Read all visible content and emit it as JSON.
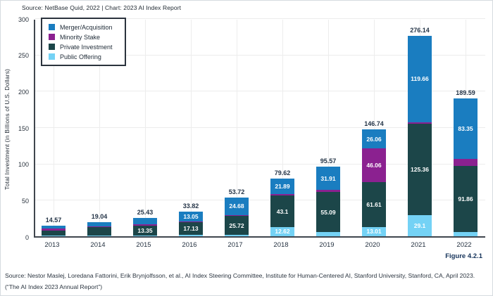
{
  "header": {
    "source_line": "Source: NetBase Quid, 2022 | Chart: 2023 AI Index Report"
  },
  "figure_label": "Figure 4.2.1",
  "footer": {
    "line1": "Source: Nestor Maslej, Loredana Fattorini, Erik Brynjolfsson, et al., AI Index Steering Committee, Institute for Human-Centered AI, Stanford University, Stanford, CA, April 2023.",
    "line2": "(“The AI Index 2023 Annual Report”)"
  },
  "chart_data": {
    "type": "bar",
    "stacked": true,
    "title": "",
    "xlabel": "",
    "ylabel": "Total Investment (in Billions of U.S. Dollars)",
    "ylim": [
      0,
      300
    ],
    "yticks": [
      0,
      50,
      100,
      150,
      200,
      250,
      300
    ],
    "grid": true,
    "legend_position": "top-left",
    "categories": [
      "2013",
      "2014",
      "2015",
      "2016",
      "2017",
      "2018",
      "2019",
      "2020",
      "2021",
      "2022"
    ],
    "stack_order_bottom_to_top": [
      "public_offering",
      "private_investment",
      "minority_stake",
      "merger_acquisition"
    ],
    "series": [
      {
        "key": "merger_acquisition",
        "name": "Merger/Acquisition",
        "color": "#1A7DC0",
        "values": [
          4.3,
          5.0,
          9.3,
          13.05,
          24.68,
          21.89,
          31.91,
          26.06,
          119.66,
          83.35
        ],
        "labels": [
          "",
          "",
          "",
          "13.05",
          "24.68",
          "21.89",
          "31.91",
          "26.06",
          "119.66",
          "83.35"
        ]
      },
      {
        "key": "minority_stake",
        "name": "Minority Stake",
        "color": "#8B2190",
        "values": [
          2.4,
          1.2,
          1.5,
          1.5,
          1.32,
          2.01,
          3.0,
          46.06,
          2.02,
          9.0
        ],
        "labels": [
          "",
          "",
          "",
          "",
          "",
          "",
          "",
          "46.06",
          "",
          ""
        ]
      },
      {
        "key": "private_investment",
        "name": "Private Investment",
        "color": "#1C4649",
        "values": [
          6.9,
          11.8,
          13.35,
          17.13,
          25.72,
          43.1,
          55.09,
          61.61,
          125.36,
          91.86
        ],
        "labels": [
          "",
          "",
          "13.35",
          "17.13",
          "25.72",
          "43.1",
          "55.09",
          "61.61",
          "125.36",
          "91.86"
        ]
      },
      {
        "key": "public_offering",
        "name": "Public Offering",
        "color": "#74D2F5",
        "values": [
          0.97,
          1.04,
          1.28,
          2.14,
          2.0,
          12.62,
          5.57,
          13.01,
          29.1,
          5.38
        ],
        "labels": [
          "",
          "",
          "",
          "",
          "",
          "12.62",
          "",
          "13.01",
          "29.1",
          ""
        ]
      }
    ],
    "totals": [
      "14.57",
      "19.04",
      "25.43",
      "33.82",
      "53.72",
      "79.62",
      "95.57",
      "146.74",
      "276.14",
      "189.59"
    ]
  }
}
